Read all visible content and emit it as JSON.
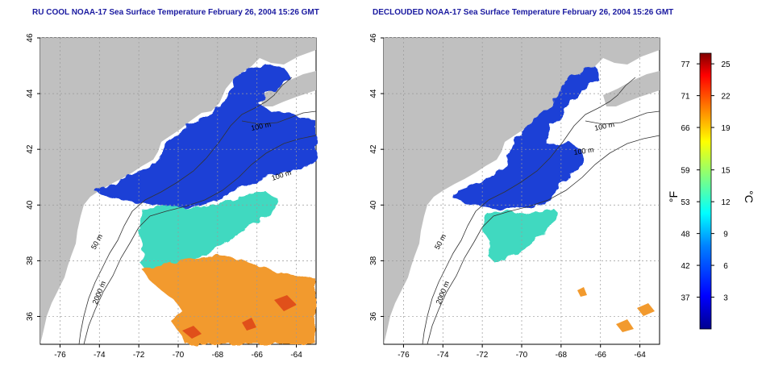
{
  "panels": [
    {
      "title": "RU COOL NOAA-17 Sea Surface Temperature February 26, 2004 15:26 GMT",
      "contour_labels": [
        "100 m",
        "100 m",
        "50 m",
        "2000 m"
      ]
    },
    {
      "title": "DECLOUDED NOAA-17 Sea Surface Temperature February 26, 2004 15:26 GMT",
      "contour_labels": [
        "100 m",
        "100 m",
        "50 m",
        "2000 m"
      ]
    }
  ],
  "axes": {
    "lon_ticks": [
      "-76",
      "-74",
      "-72",
      "-70",
      "-68",
      "-66",
      "-64"
    ],
    "lat_ticks": [
      "36",
      "38",
      "40",
      "42",
      "44",
      "46"
    ],
    "lon_range": [
      -77,
      -63
    ],
    "lat_range": [
      35,
      46
    ],
    "grid": "dotted"
  },
  "colorbar": {
    "f_ticks": [
      "77",
      "71",
      "66",
      "59",
      "53",
      "48",
      "42",
      "37"
    ],
    "c_ticks": [
      "25",
      "22",
      "19",
      "15",
      "12",
      "9",
      "6",
      "3"
    ],
    "f_label": "°F",
    "c_label": "°C",
    "c_range": [
      0,
      26
    ],
    "colors": [
      "#00008f",
      "#0000ff",
      "#0080ff",
      "#00ffff",
      "#80ff80",
      "#ffff00",
      "#ff8000",
      "#ff0000",
      "#800000"
    ]
  },
  "colors": {
    "land": "#c0c0c0",
    "water": "#ffffff",
    "cold": "#1a3fd6",
    "cool": "#33d6c4",
    "warm": "#f5a623",
    "title": "#1a1aa0"
  }
}
